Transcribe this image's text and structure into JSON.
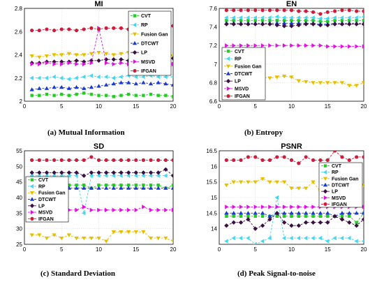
{
  "series_styles": [
    {
      "name": "CVT",
      "color": "#22cc22",
      "marker": "square"
    },
    {
      "name": "RP",
      "color": "#44d7f0",
      "marker": "triangle-left"
    },
    {
      "name": "Fusion Gan",
      "color": "#e6c000",
      "marker": "triangle-down"
    },
    {
      "name": "DTCWT",
      "color": "#1a3bcc",
      "marker": "triangle-up"
    },
    {
      "name": "LP",
      "color": "#3a1040",
      "marker": "diamond"
    },
    {
      "name": "MSVD",
      "color": "#e010e0",
      "marker": "triangle-right"
    },
    {
      "name": "IFGAN",
      "color": "#cc1d3c",
      "marker": "circle"
    }
  ],
  "chart_data": [
    {
      "id": "mi",
      "type": "line",
      "title": "MI",
      "caption": "(a)    Mutual Information",
      "xlim": [
        0,
        20
      ],
      "ylim": [
        2.0,
        2.8
      ],
      "xticks": [
        "0",
        "5",
        "10",
        "15",
        "20"
      ],
      "yticks": [
        "2",
        "2.2",
        "2.4",
        "2.6",
        "2.8"
      ],
      "grid": true,
      "legend": "top-right",
      "x": [
        1,
        2,
        3,
        4,
        5,
        6,
        7,
        8,
        9,
        10,
        11,
        12,
        13,
        14,
        15,
        16,
        17,
        18,
        19,
        20
      ],
      "series": [
        {
          "name": "CVT",
          "values": [
            2.05,
            2.05,
            2.06,
            2.05,
            2.06,
            2.05,
            2.06,
            2.07,
            2.06,
            2.05,
            2.05,
            2.04,
            2.05,
            2.06,
            2.05,
            2.05,
            2.06,
            2.05,
            2.05,
            2.04
          ]
        },
        {
          "name": "RP",
          "values": [
            2.2,
            2.2,
            2.2,
            2.21,
            2.2,
            2.19,
            2.2,
            2.21,
            2.22,
            2.21,
            2.21,
            2.2,
            2.21,
            2.22,
            2.21,
            2.21,
            2.22,
            2.21,
            2.21,
            2.21
          ]
        },
        {
          "name": "Fusion Gan",
          "values": [
            2.39,
            2.38,
            2.39,
            2.4,
            2.4,
            2.41,
            2.4,
            2.4,
            2.41,
            2.42,
            2.41,
            2.4,
            2.41,
            2.42,
            2.41,
            2.41,
            2.42,
            2.41,
            2.4,
            2.39
          ]
        },
        {
          "name": "DTCWT",
          "values": [
            2.1,
            2.11,
            2.11,
            2.12,
            2.12,
            2.11,
            2.12,
            2.11,
            2.12,
            2.13,
            2.14,
            2.15,
            2.16,
            2.16,
            2.15,
            2.16,
            2.15,
            2.16,
            2.15,
            2.14
          ]
        },
        {
          "name": "LP",
          "values": [
            2.33,
            2.33,
            2.34,
            2.34,
            2.34,
            2.34,
            2.35,
            2.34,
            2.35,
            2.35,
            2.36,
            2.36,
            2.36,
            2.35,
            2.36,
            2.37,
            2.37,
            2.36,
            2.37,
            2.37
          ]
        },
        {
          "name": "MSVD",
          "values": [
            2.32,
            2.32,
            2.33,
            2.32,
            2.32,
            2.33,
            2.32,
            2.32,
            2.33,
            2.63,
            2.33,
            2.32,
            2.33,
            2.32,
            2.33,
            2.33,
            2.33,
            2.32,
            2.32,
            2.32
          ]
        },
        {
          "name": "IFGAN",
          "values": [
            2.61,
            2.61,
            2.62,
            2.61,
            2.62,
            2.62,
            2.61,
            2.62,
            2.63,
            2.62,
            2.63,
            2.63,
            2.63,
            2.62,
            2.63,
            2.63,
            2.63,
            2.63,
            2.63,
            2.65
          ]
        }
      ]
    },
    {
      "id": "en",
      "type": "line",
      "title": "EN",
      "caption": "(b)    Entropy",
      "xlim": [
        0,
        20
      ],
      "ylim": [
        6.6,
        7.6
      ],
      "xticks": [
        "0",
        "5",
        "10",
        "15",
        "20"
      ],
      "yticks": [
        "6.6",
        "6.8",
        "7",
        "7.2",
        "7.4",
        "7.6"
      ],
      "grid": true,
      "legend": "bottom-left",
      "x": [
        1,
        2,
        3,
        4,
        5,
        6,
        7,
        8,
        9,
        10,
        11,
        12,
        13,
        14,
        15,
        16,
        17,
        18,
        19,
        20
      ],
      "series": [
        {
          "name": "CVT",
          "values": [
            7.47,
            7.47,
            7.47,
            7.47,
            7.47,
            7.47,
            7.47,
            7.47,
            7.47,
            7.47,
            7.47,
            7.47,
            7.47,
            7.46,
            7.46,
            7.47,
            7.47,
            7.47,
            7.47,
            7.47
          ]
        },
        {
          "name": "RP",
          "values": [
            7.5,
            7.5,
            7.5,
            7.5,
            7.5,
            7.5,
            7.5,
            7.51,
            7.5,
            7.5,
            7.5,
            7.5,
            7.5,
            7.49,
            7.49,
            7.5,
            7.5,
            7.5,
            7.5,
            7.51
          ]
        },
        {
          "name": "Fusion Gan",
          "values": [
            6.9,
            6.89,
            6.88,
            6.87,
            6.87,
            6.86,
            6.85,
            6.86,
            6.87,
            6.86,
            6.82,
            6.81,
            6.8,
            6.8,
            6.8,
            6.8,
            6.8,
            6.77,
            6.77,
            6.8
          ]
        },
        {
          "name": "DTCWT",
          "values": [
            7.44,
            7.44,
            7.44,
            7.44,
            7.44,
            7.44,
            7.44,
            7.44,
            7.44,
            7.44,
            7.44,
            7.44,
            7.44,
            7.43,
            7.43,
            7.44,
            7.44,
            7.44,
            7.44,
            7.44
          ]
        },
        {
          "name": "LP",
          "values": [
            7.43,
            7.43,
            7.43,
            7.43,
            7.43,
            7.43,
            7.43,
            7.42,
            7.41,
            7.41,
            7.42,
            7.43,
            7.43,
            7.42,
            7.42,
            7.43,
            7.43,
            7.43,
            7.43,
            7.43
          ]
        },
        {
          "name": "MSVD",
          "values": [
            7.2,
            7.2,
            7.2,
            7.2,
            7.2,
            7.2,
            7.2,
            7.2,
            7.2,
            7.2,
            7.2,
            7.2,
            7.2,
            7.2,
            7.19,
            7.19,
            7.19,
            7.19,
            7.19,
            7.19
          ]
        },
        {
          "name": "IFGAN",
          "values": [
            7.58,
            7.58,
            7.58,
            7.58,
            7.58,
            7.58,
            7.58,
            7.58,
            7.58,
            7.58,
            7.57,
            7.57,
            7.56,
            7.54,
            7.56,
            7.57,
            7.58,
            7.58,
            7.57,
            7.57
          ]
        }
      ]
    },
    {
      "id": "sd",
      "type": "line",
      "title": "SD",
      "caption": "(c) Standard Deviation",
      "xlim": [
        0,
        20
      ],
      "ylim": [
        25,
        55
      ],
      "xticks": [
        "0",
        "5",
        "10",
        "15",
        "20"
      ],
      "yticks": [
        "25",
        "30",
        "35",
        "40",
        "45",
        "50",
        "55"
      ],
      "grid": true,
      "legend": "left",
      "x": [
        1,
        2,
        3,
        4,
        5,
        6,
        7,
        8,
        9,
        10,
        11,
        12,
        13,
        14,
        15,
        16,
        17,
        18,
        19,
        20
      ],
      "series": [
        {
          "name": "CVT",
          "values": [
            44,
            44,
            44,
            44,
            44,
            44,
            44,
            44,
            43,
            44,
            44,
            44,
            44,
            44,
            44,
            44,
            44,
            44,
            43,
            44
          ]
        },
        {
          "name": "RP",
          "values": [
            47,
            47,
            47,
            47,
            47,
            47,
            47,
            35,
            47,
            47,
            47,
            47,
            47,
            47,
            47,
            47,
            47,
            47,
            47,
            47
          ]
        },
        {
          "name": "Fusion Gan",
          "values": [
            28,
            28,
            27,
            28,
            27,
            28,
            27,
            27,
            27,
            27,
            26,
            29,
            29,
            29,
            29,
            29,
            27,
            27,
            27,
            26
          ]
        },
        {
          "name": "DTCWT",
          "values": [
            43,
            43,
            43,
            43,
            43,
            43,
            43,
            43,
            43,
            43,
            43,
            43,
            43,
            43,
            43,
            43,
            43,
            43,
            43,
            43
          ]
        },
        {
          "name": "LP",
          "values": [
            48,
            48,
            48,
            48,
            48,
            48,
            48,
            47,
            48,
            48,
            48,
            48,
            48,
            48,
            48,
            48,
            48,
            48,
            49,
            47
          ]
        },
        {
          "name": "MSVD",
          "values": [
            36,
            36,
            36,
            36,
            36,
            36,
            36,
            37,
            36,
            36,
            36,
            36,
            36,
            36,
            36,
            37,
            36,
            36,
            36,
            36
          ]
        },
        {
          "name": "IFGAN",
          "values": [
            52,
            52,
            52,
            52,
            52,
            52,
            52,
            52,
            53,
            52,
            52,
            52,
            52,
            52,
            52,
            52,
            52,
            52,
            52,
            52
          ]
        }
      ]
    },
    {
      "id": "psnr",
      "type": "line",
      "title": "PSNR",
      "caption": "(d)    Peak Signal-to-noise",
      "xlim": [
        0,
        20
      ],
      "ylim": [
        13.5,
        16.5
      ],
      "xticks": [
        "0",
        "5",
        "10",
        "15",
        "20"
      ],
      "yticks": [
        "14",
        "14.5",
        "15",
        "15.5",
        "16",
        "16.5"
      ],
      "grid": true,
      "legend": "top-right",
      "x": [
        1,
        2,
        3,
        4,
        5,
        6,
        7,
        8,
        9,
        10,
        11,
        12,
        13,
        14,
        15,
        16,
        17,
        18,
        19,
        20
      ],
      "series": [
        {
          "name": "CVT",
          "values": [
            14.4,
            14.4,
            14.4,
            14.4,
            14.4,
            14.4,
            14.4,
            14.4,
            14.4,
            14.4,
            14.4,
            14.4,
            14.4,
            14.4,
            14.4,
            14.4,
            14.4,
            14.4,
            14.2,
            14.5
          ]
        },
        {
          "name": "RP",
          "values": [
            13.6,
            13.7,
            13.7,
            13.7,
            13.5,
            13.6,
            13.7,
            15.0,
            13.7,
            13.7,
            13.7,
            13.7,
            13.7,
            13.7,
            13.6,
            13.7,
            13.7,
            13.7,
            13.6,
            13.6
          ]
        },
        {
          "name": "Fusion Gan",
          "values": [
            15.4,
            15.5,
            15.5,
            15.5,
            15.5,
            15.6,
            15.5,
            15.5,
            15.5,
            15.3,
            15.3,
            15.3,
            15.5,
            15.2,
            15.3,
            15.5,
            15.5,
            15.5,
            15.3,
            15.4
          ]
        },
        {
          "name": "DTCWT",
          "values": [
            14.5,
            14.5,
            14.5,
            14.5,
            14.5,
            14.5,
            14.4,
            14.5,
            14.5,
            14.5,
            14.5,
            14.5,
            14.5,
            14.5,
            14.5,
            14.4,
            14.5,
            14.5,
            14.5,
            14.5
          ]
        },
        {
          "name": "LP",
          "values": [
            14.1,
            14.2,
            14.2,
            14.3,
            14.0,
            14.1,
            14.3,
            14.5,
            14.2,
            14.1,
            14.1,
            14.2,
            14.2,
            14.2,
            14.2,
            14.4,
            14.3,
            14.2,
            14.1,
            14.3
          ]
        },
        {
          "name": "MSVD",
          "values": [
            14.7,
            14.7,
            14.7,
            14.7,
            14.7,
            14.7,
            14.7,
            14.7,
            14.7,
            14.7,
            14.7,
            14.7,
            14.7,
            14.7,
            14.7,
            14.7,
            14.7,
            14.7,
            14.7,
            14.7
          ]
        },
        {
          "name": "IFGAN",
          "values": [
            16.2,
            16.2,
            16.2,
            16.3,
            16.3,
            16.2,
            16.2,
            16.3,
            16.3,
            16.2,
            16.1,
            16.3,
            16.2,
            16.2,
            16.2,
            16.5,
            16.3,
            16.2,
            16.3,
            16.3
          ]
        }
      ]
    }
  ]
}
